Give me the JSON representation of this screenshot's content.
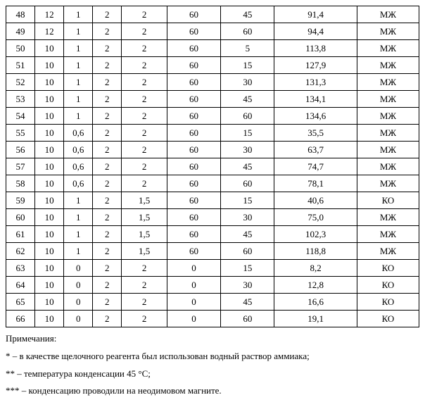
{
  "table": {
    "rows": [
      [
        "48",
        "12",
        "1",
        "2",
        "2",
        "60",
        "45",
        "91,4",
        "МЖ"
      ],
      [
        "49",
        "12",
        "1",
        "2",
        "2",
        "60",
        "60",
        "94,4",
        "МЖ"
      ],
      [
        "50",
        "10",
        "1",
        "2",
        "2",
        "60",
        "5",
        "113,8",
        "МЖ"
      ],
      [
        "51",
        "10",
        "1",
        "2",
        "2",
        "60",
        "15",
        "127,9",
        "МЖ"
      ],
      [
        "52",
        "10",
        "1",
        "2",
        "2",
        "60",
        "30",
        "131,3",
        "МЖ"
      ],
      [
        "53",
        "10",
        "1",
        "2",
        "2",
        "60",
        "45",
        "134,1",
        "МЖ"
      ],
      [
        "54",
        "10",
        "1",
        "2",
        "2",
        "60",
        "60",
        "134,6",
        "МЖ"
      ],
      [
        "55",
        "10",
        "0,6",
        "2",
        "2",
        "60",
        "15",
        "35,5",
        "МЖ"
      ],
      [
        "56",
        "10",
        "0,6",
        "2",
        "2",
        "60",
        "30",
        "63,7",
        "МЖ"
      ],
      [
        "57",
        "10",
        "0,6",
        "2",
        "2",
        "60",
        "45",
        "74,7",
        "МЖ"
      ],
      [
        "58",
        "10",
        "0,6",
        "2",
        "2",
        "60",
        "60",
        "78,1",
        "МЖ"
      ],
      [
        "59",
        "10",
        "1",
        "2",
        "1,5",
        "60",
        "15",
        "40,6",
        "КО"
      ],
      [
        "60",
        "10",
        "1",
        "2",
        "1,5",
        "60",
        "30",
        "75,0",
        "МЖ"
      ],
      [
        "61",
        "10",
        "1",
        "2",
        "1,5",
        "60",
        "45",
        "102,3",
        "МЖ"
      ],
      [
        "62",
        "10",
        "1",
        "2",
        "1,5",
        "60",
        "60",
        "118,8",
        "МЖ"
      ],
      [
        "63",
        "10",
        "0",
        "2",
        "2",
        "0",
        "15",
        "8,2",
        "КО"
      ],
      [
        "64",
        "10",
        "0",
        "2",
        "2",
        "0",
        "30",
        "12,8",
        "КО"
      ],
      [
        "65",
        "10",
        "0",
        "2",
        "2",
        "0",
        "45",
        "16,6",
        "КО"
      ],
      [
        "66",
        "10",
        "0",
        "2",
        "2",
        "0",
        "60",
        "19,1",
        "КО"
      ]
    ]
  },
  "notes": {
    "heading": "Примечания:",
    "n1": "* – в качестве щелочного реагента был использован водный раствор аммиака;",
    "n2": "** – температура конденсации 45 °С;",
    "n3": "*** – конденсацию проводили на неодимовом магните."
  }
}
